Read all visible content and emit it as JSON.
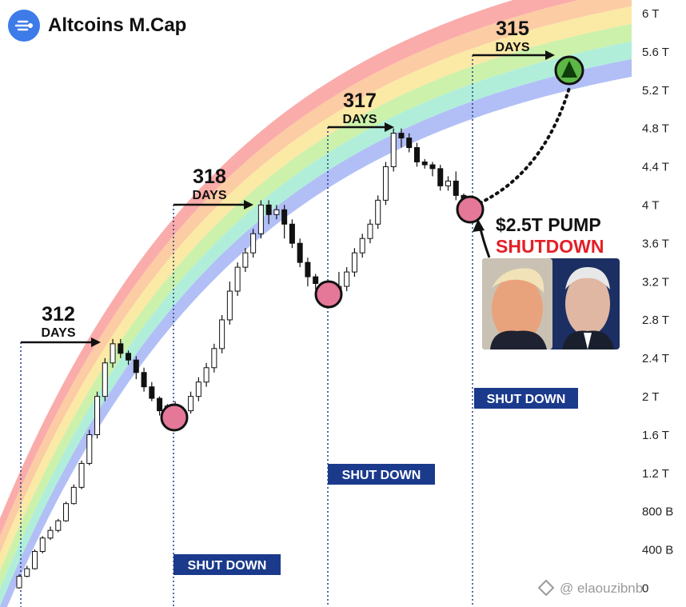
{
  "header": {
    "title": "Altcoins M.Cap",
    "logo_icon": "cmc-logo-icon",
    "accent": "#3d7be8"
  },
  "watermark": "@ elaouzibnb",
  "chart_data": {
    "type": "candlestick",
    "title": "Altcoins M.Cap",
    "y_axis": {
      "ticks": [
        "6 T",
        "5.6 T",
        "5.2 T",
        "4.8 T",
        "4.4 T",
        "4 T",
        "3.6 T",
        "3.2 T",
        "2.8 T",
        "2.4 T",
        "2 T",
        "1.6 T",
        "1.2 T",
        "800 B",
        "400 B",
        "0"
      ],
      "range": [
        0,
        6000
      ]
    },
    "rainbow_band_colors": [
      "#f9a3a1",
      "#fcc79a",
      "#fbe79c",
      "#c7f0a2",
      "#a7ecd6",
      "#aab8f5"
    ],
    "candles": [
      [
        5,
        0,
        120,
        -10,
        140
      ],
      [
        5,
        120,
        200,
        110,
        230
      ],
      [
        5,
        200,
        380,
        190,
        400
      ],
      [
        5,
        380,
        520,
        360,
        540
      ],
      [
        5,
        520,
        600,
        500,
        640
      ],
      [
        5,
        600,
        700,
        580,
        720
      ],
      [
        5,
        700,
        880,
        690,
        900
      ],
      [
        5,
        880,
        1050,
        870,
        1080
      ],
      [
        5,
        1050,
        1300,
        1030,
        1330
      ],
      [
        5,
        1300,
        1600,
        1280,
        1650
      ],
      [
        5,
        1600,
        2000,
        1560,
        2050
      ],
      [
        5,
        2000,
        2350,
        1950,
        2400
      ],
      [
        5,
        2350,
        2550,
        2300,
        2600
      ],
      [
        5,
        2550,
        2450,
        2400,
        2600
      ],
      [
        5,
        2450,
        2380,
        2330,
        2480
      ],
      [
        5,
        2380,
        2250,
        2180,
        2420
      ],
      [
        5,
        2250,
        2100,
        2050,
        2300
      ],
      [
        5,
        2100,
        1980,
        1950,
        2150
      ],
      [
        5,
        1980,
        1850,
        1800,
        2000
      ],
      [
        5,
        1850,
        1900,
        1830,
        1920
      ],
      [
        5,
        1900,
        1830,
        1700,
        1950
      ],
      [
        5,
        1830,
        1850,
        1800,
        1870
      ],
      [
        5,
        1850,
        2000,
        1820,
        2050
      ],
      [
        5,
        2000,
        2150,
        1950,
        2200
      ],
      [
        5,
        2150,
        2300,
        2100,
        2350
      ],
      [
        5,
        2300,
        2500,
        2250,
        2550
      ],
      [
        5,
        2500,
        2800,
        2450,
        2850
      ],
      [
        5,
        2800,
        3100,
        2750,
        3200
      ],
      [
        5,
        3100,
        3350,
        3050,
        3400
      ],
      [
        5,
        3350,
        3500,
        3300,
        3550
      ],
      [
        5,
        3500,
        3700,
        3450,
        3750
      ],
      [
        5,
        3700,
        4000,
        3650,
        4050
      ],
      [
        5,
        4000,
        3900,
        3800,
        4050
      ],
      [
        5,
        3900,
        3950,
        3850,
        4000
      ],
      [
        5,
        3950,
        3800,
        3650,
        4000
      ],
      [
        5,
        3800,
        3600,
        3550,
        3850
      ],
      [
        5,
        3600,
        3400,
        3350,
        3650
      ],
      [
        5,
        3400,
        3250,
        3150,
        3450
      ],
      [
        5,
        3250,
        3180,
        3120,
        3280
      ],
      [
        5,
        3180,
        3120,
        3000,
        3200
      ],
      [
        5,
        3120,
        3080,
        3020,
        3150
      ],
      [
        5,
        3080,
        3150,
        3050,
        3300
      ],
      [
        5,
        3150,
        3300,
        3100,
        3350
      ],
      [
        5,
        3300,
        3500,
        3250,
        3550
      ],
      [
        5,
        3500,
        3650,
        3450,
        3700
      ],
      [
        5,
        3650,
        3800,
        3600,
        3850
      ],
      [
        5,
        3800,
        4050,
        3750,
        4100
      ],
      [
        5,
        4050,
        4400,
        4000,
        4450
      ],
      [
        5,
        4400,
        4750,
        4350,
        4800
      ],
      [
        5,
        4750,
        4700,
        4600,
        4800
      ],
      [
        5,
        4700,
        4600,
        4550,
        4750
      ],
      [
        5,
        4600,
        4450,
        4400,
        4650
      ],
      [
        5,
        4450,
        4420,
        4380,
        4480
      ],
      [
        5,
        4420,
        4380,
        4300,
        4450
      ],
      [
        5,
        4380,
        4200,
        4150,
        4420
      ],
      [
        5,
        4200,
        4250,
        4150,
        4300
      ],
      [
        5,
        4250,
        4100,
        4050,
        4350
      ],
      [
        5,
        4100,
        4000,
        3900,
        4120
      ]
    ],
    "shutdown_markers": [
      "SHUT DOWN",
      "SHUT DOWN",
      "SHUT DOWN"
    ],
    "cycle_annotations": [
      {
        "days": "312",
        "word": "DAYS"
      },
      {
        "days": "318",
        "word": "DAYS"
      },
      {
        "days": "317",
        "word": "DAYS"
      },
      {
        "days": "315",
        "word": "DAYS"
      }
    ],
    "callout": {
      "line1": "$2.5T PUMP",
      "line2": "SHUTDOWN"
    },
    "target_icon": "up-triangle-icon",
    "colors": {
      "low_marker": "#e57899",
      "target": "#5cb746",
      "shutdown_bg": "#1b3a8c",
      "pump_red": "#e41e26"
    }
  }
}
